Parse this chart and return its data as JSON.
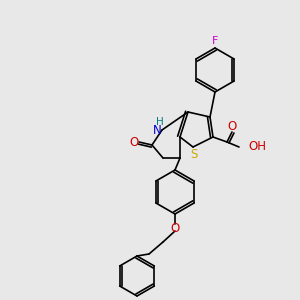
{
  "bg_color": "#e8e8e8",
  "bond_color": "#000000",
  "atom_colors": {
    "F": "#cc00cc",
    "O": "#cc0000",
    "N": "#0000cc",
    "S": "#ccaa00",
    "H": "#008080",
    "C": "#000000"
  },
  "font_size": 7.5,
  "bond_width": 1.2
}
